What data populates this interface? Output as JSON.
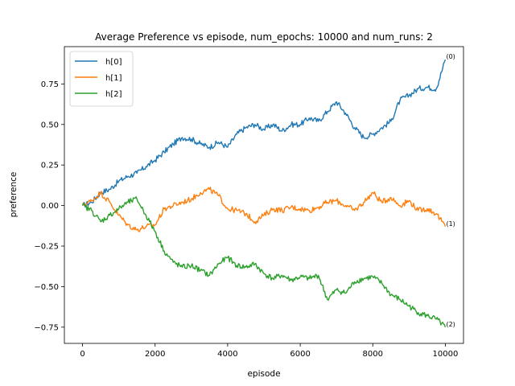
{
  "chart_data": {
    "type": "line",
    "title": "Average Preference vs episode, num_epochs: 10000 and num_runs: 2",
    "xlabel": "episode",
    "ylabel": "preference",
    "xlim": [
      -500,
      10500
    ],
    "ylim": [
      -0.85,
      0.98
    ],
    "xticks": [
      0,
      2000,
      4000,
      6000,
      8000,
      10000
    ],
    "yticks": [
      -0.75,
      -0.5,
      -0.25,
      0.0,
      0.25,
      0.5,
      0.75
    ],
    "xtick_labels": [
      "0",
      "2000",
      "4000",
      "6000",
      "8000",
      "10000"
    ],
    "ytick_labels": [
      "−0.75",
      "−0.50",
      "−0.25",
      "0.00",
      "0.25",
      "0.50",
      "0.75"
    ],
    "legend_position": "top-left",
    "series": [
      {
        "name": "h[0]",
        "color": "#1f77b4",
        "annotation": "(0)",
        "x": [
          0,
          250,
          500,
          750,
          1000,
          1250,
          1500,
          1750,
          2000,
          2250,
          2500,
          2750,
          3000,
          3250,
          3500,
          3750,
          4000,
          4250,
          4500,
          4750,
          5000,
          5250,
          5500,
          5750,
          6000,
          6250,
          6500,
          6750,
          7000,
          7250,
          7500,
          7750,
          8000,
          8250,
          8500,
          8750,
          9000,
          9250,
          9500,
          9750,
          10000
        ],
        "values": [
          0.0,
          0.02,
          0.08,
          0.1,
          0.15,
          0.18,
          0.2,
          0.24,
          0.28,
          0.33,
          0.38,
          0.42,
          0.41,
          0.38,
          0.36,
          0.39,
          0.36,
          0.44,
          0.48,
          0.5,
          0.47,
          0.5,
          0.46,
          0.5,
          0.5,
          0.54,
          0.52,
          0.58,
          0.64,
          0.57,
          0.48,
          0.42,
          0.44,
          0.48,
          0.52,
          0.65,
          0.68,
          0.72,
          0.73,
          0.72,
          0.9
        ]
      },
      {
        "name": "h[1]",
        "color": "#ff7f0e",
        "annotation": "(1)",
        "x": [
          0,
          250,
          500,
          750,
          1000,
          1250,
          1500,
          1750,
          2000,
          2250,
          2500,
          2750,
          3000,
          3250,
          3500,
          3750,
          4000,
          4250,
          4500,
          4750,
          5000,
          5250,
          5500,
          5750,
          6000,
          6250,
          6500,
          6750,
          7000,
          7250,
          7500,
          7750,
          8000,
          8250,
          8500,
          8750,
          9000,
          9250,
          9500,
          9750,
          10000
        ],
        "values": [
          0.0,
          0.03,
          0.08,
          0.02,
          -0.06,
          -0.12,
          -0.15,
          -0.13,
          -0.12,
          -0.02,
          0.0,
          0.02,
          0.04,
          0.08,
          0.1,
          0.06,
          -0.02,
          -0.03,
          -0.05,
          -0.1,
          -0.06,
          -0.02,
          -0.03,
          -0.01,
          -0.02,
          -0.03,
          -0.01,
          0.02,
          0.03,
          0.0,
          -0.03,
          0.02,
          0.08,
          0.02,
          0.05,
          0.0,
          0.03,
          -0.03,
          -0.02,
          -0.05,
          -0.13
        ]
      },
      {
        "name": "h[2]",
        "color": "#2ca02c",
        "annotation": "(2)",
        "x": [
          0,
          250,
          500,
          750,
          1000,
          1250,
          1500,
          1750,
          2000,
          2250,
          2500,
          2750,
          3000,
          3250,
          3500,
          3750,
          4000,
          4250,
          4500,
          4750,
          5000,
          5250,
          5500,
          5750,
          6000,
          6250,
          6500,
          6750,
          7000,
          7250,
          7500,
          7750,
          8000,
          8250,
          8500,
          8750,
          9000,
          9250,
          9500,
          9750,
          10000
        ],
        "values": [
          0.0,
          -0.03,
          -0.1,
          -0.06,
          -0.02,
          0.02,
          0.04,
          -0.06,
          -0.16,
          -0.28,
          -0.35,
          -0.38,
          -0.37,
          -0.4,
          -0.43,
          -0.36,
          -0.32,
          -0.37,
          -0.38,
          -0.36,
          -0.42,
          -0.45,
          -0.43,
          -0.46,
          -0.44,
          -0.45,
          -0.43,
          -0.58,
          -0.52,
          -0.54,
          -0.47,
          -0.45,
          -0.44,
          -0.48,
          -0.55,
          -0.58,
          -0.62,
          -0.66,
          -0.68,
          -0.7,
          -0.75
        ]
      }
    ]
  }
}
